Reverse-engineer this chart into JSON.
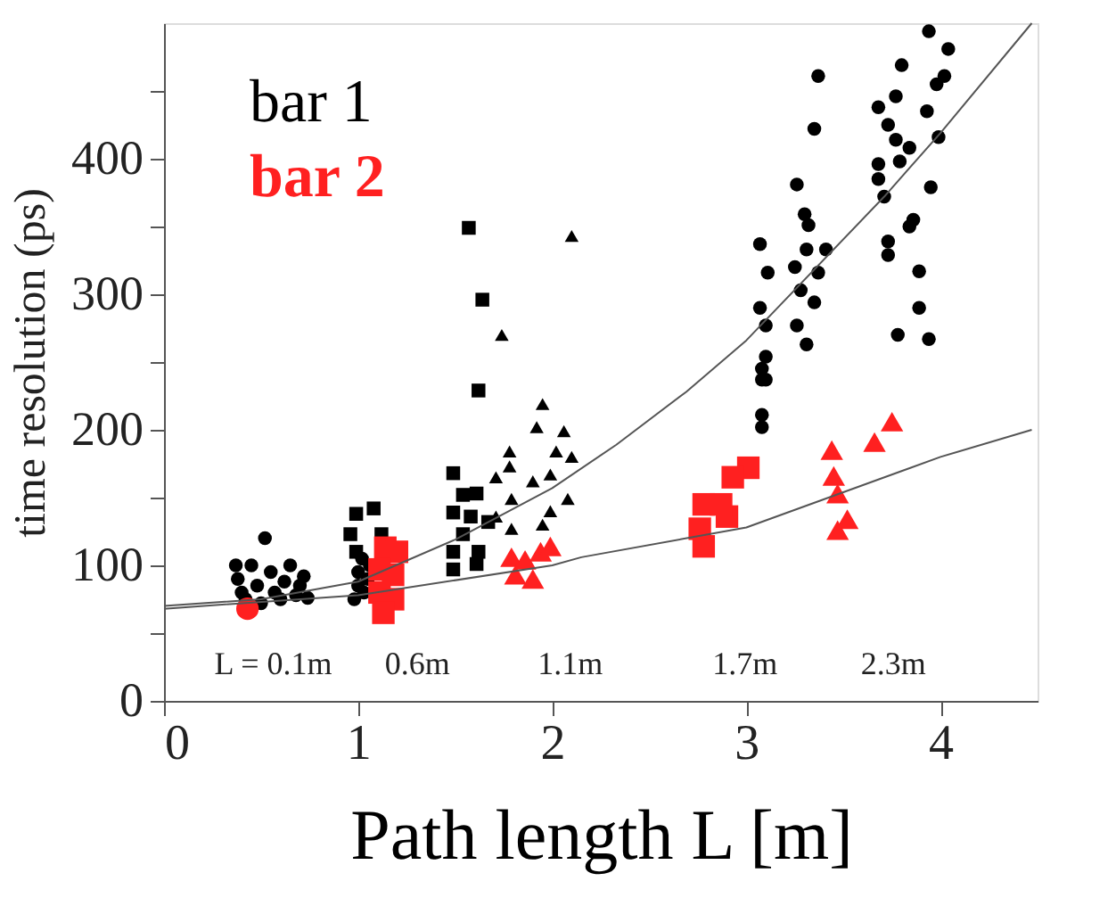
{
  "chart_data": {
    "type": "scatter",
    "xlabel": "Path length L [m]",
    "ylabel": "time resolution  (ps)",
    "xlim": [
      0,
      4.5
    ],
    "ylim": [
      0,
      500
    ],
    "xticks": [
      0,
      1,
      2,
      3,
      4
    ],
    "yticks": [
      0,
      {
        "value": 50,
        "label": null
      },
      100,
      {
        "value": 150,
        "label": null
      },
      200,
      {
        "value": 250,
        "label": null
      },
      300,
      {
        "value": 350,
        "label": null
      },
      400,
      {
        "value": 450,
        "label": null
      }
    ],
    "grid": false,
    "legend": "top left",
    "annotations": [
      "L = 0.1m",
      "0.6m",
      "1.1m",
      "1.7m",
      "2.3m"
    ],
    "line_style": "solid",
    "series": [
      {
        "name": "bar 1",
        "color": "#000000",
        "marker": "circle",
        "x": [
          0.37,
          0.38,
          0.4,
          0.42,
          0.45,
          0.48,
          0.5,
          0.52,
          0.55,
          0.57,
          0.6,
          0.62,
          0.65,
          0.68,
          0.7,
          0.72,
          0.74,
          0.98,
          1.0,
          1.0,
          1.02,
          1.03,
          1.05,
          1.06,
          3.37,
          3.35,
          3.26,
          3.3,
          3.32,
          3.07,
          3.11,
          3.31,
          3.41,
          3.25,
          3.37,
          3.28,
          3.35,
          3.07,
          3.26,
          3.31,
          3.1,
          3.1,
          3.1,
          3.08,
          3.08,
          3.08,
          3.08,
          3.94,
          4.04,
          3.8,
          4.02,
          3.98,
          3.68,
          3.77,
          3.93,
          3.73,
          3.77,
          3.99,
          3.84,
          3.79,
          3.68,
          3.68,
          3.71,
          3.95,
          3.86,
          3.84,
          3.73,
          3.73,
          3.89,
          3.89,
          3.78,
          3.94
        ],
        "values": [
          100,
          90,
          80,
          75,
          100,
          85,
          72,
          120,
          95,
          80,
          75,
          88,
          100,
          78,
          85,
          92,
          76,
          75,
          85,
          95,
          105,
          80,
          90,
          100,
          461,
          422,
          381,
          359,
          351,
          337,
          316,
          333,
          333,
          320,
          316,
          303,
          294,
          290,
          277,
          263,
          277,
          254,
          237,
          245,
          237,
          211,
          202,
          494,
          481,
          469,
          461,
          455,
          438,
          446,
          435,
          425,
          414,
          416,
          408,
          398,
          396,
          385,
          372,
          379,
          355,
          350,
          339,
          329,
          317,
          290,
          270,
          267
        ]
      },
      {
        "color": "#000000",
        "marker": "square",
        "x": [
          1.57,
          1.64,
          1.62,
          1.49,
          0.99,
          1.08,
          0.96,
          1.12,
          0.99,
          1.49,
          1.54,
          1.61,
          1.54,
          1.49,
          1.62,
          1.49,
          1.61,
          1.67,
          1.58
        ],
        "values": [
          349,
          296,
          229,
          168,
          138,
          142,
          123,
          123,
          110,
          139,
          152,
          153,
          123,
          110,
          110,
          97,
          101,
          132,
          136
        ]
      },
      {
        "color": "#000000",
        "marker": "triangle",
        "x": [
          2.1,
          1.74,
          1.95,
          1.92,
          2.06,
          1.78,
          2.02,
          2.1,
          1.78,
          1.71,
          1.9,
          1.99,
          1.79,
          2.08,
          1.71,
          1.99,
          1.79,
          1.95
        ],
        "values": [
          343,
          270,
          219,
          202,
          199,
          184,
          184,
          180,
          173,
          165,
          162,
          167,
          149,
          149,
          136,
          140,
          127,
          130
        ]
      },
      {
        "name": "bar 2",
        "color": "#ff2020",
        "marker": "circle",
        "x": [
          0.43
        ],
        "values": [
          68
        ]
      },
      {
        "color": "#ff2020",
        "marker": "square",
        "x": [
          1.14,
          1.2,
          1.11,
          1.18,
          1.11,
          1.18,
          1.13,
          3.01,
          2.93,
          2.78,
          2.9,
          2.76,
          2.78,
          2.87
        ],
        "values": [
          113,
          110,
          97,
          93,
          80,
          75,
          65,
          172,
          165,
          145,
          136,
          127,
          114,
          145
        ]
      },
      {
        "color": "#ff2020",
        "marker": "triangle",
        "x": [
          1.79,
          1.81,
          1.9,
          1.94,
          1.99,
          1.86,
          3.75,
          3.66,
          3.44,
          3.45,
          3.47,
          3.52,
          3.47
        ],
        "values": [
          106,
          93,
          90,
          110,
          114,
          104,
          206,
          191,
          185,
          166,
          153,
          134,
          126
        ]
      },
      {
        "type": "line",
        "color": "#555555",
        "x": [
          0,
          0.5,
          1,
          1.5,
          2,
          2.33,
          2.69,
          3,
          3.71,
          4,
          4.47
        ],
        "values": [
          70,
          75,
          88,
          119,
          157,
          189,
          228,
          266,
          372,
          419,
          500
        ]
      },
      {
        "type": "line",
        "color": "#555555",
        "x": [
          0,
          1,
          2,
          2.15,
          3,
          4,
          4.47
        ],
        "values": [
          68,
          78,
          100,
          106,
          128,
          180,
          200
        ]
      }
    ]
  }
}
